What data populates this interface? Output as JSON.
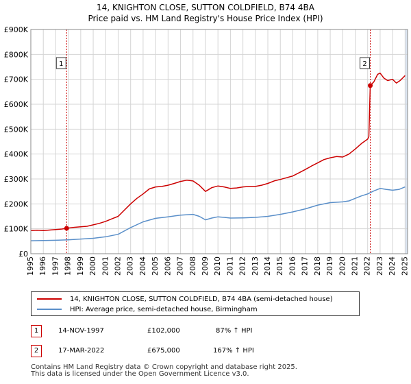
{
  "header": {
    "title": "14, KNIGHTON CLOSE, SUTTON COLDFIELD, B74 4BA",
    "subtitle": "Price paid vs. HM Land Registry's House Price Index (HPI)"
  },
  "colors": {
    "red": "#cc0000",
    "blue": "#5a8fc9",
    "shade": "#dce6f2",
    "grid": "#d4d4d4"
  },
  "chart_data": {
    "type": "line",
    "title": "14, KNIGHTON CLOSE, SUTTON COLDFIELD, B74 4BA",
    "subtitle": "Price paid vs. HM Land Registry's House Price Index (HPI)",
    "x_range": [
      1995,
      2025.2
    ],
    "ylim": [
      0,
      900000
    ],
    "yticks": [
      0,
      100000,
      200000,
      300000,
      400000,
      500000,
      600000,
      700000,
      800000,
      900000
    ],
    "ytick_labels": [
      "£0",
      "£100K",
      "£200K",
      "£300K",
      "£400K",
      "£500K",
      "£600K",
      "£700K",
      "£800K",
      "£900K"
    ],
    "xticks": [
      1995,
      1996,
      1997,
      1998,
      1999,
      2000,
      2001,
      2002,
      2003,
      2004,
      2005,
      2006,
      2007,
      2008,
      2009,
      2010,
      2011,
      2012,
      2013,
      2014,
      2015,
      2016,
      2017,
      2018,
      2019,
      2020,
      2021,
      2022,
      2023,
      2024,
      2025
    ],
    "xtick_labels": [
      "1995",
      "1996",
      "1997",
      "1998",
      "1999",
      "2000",
      "2001",
      "2002",
      "2003",
      "2004",
      "2005",
      "2006",
      "2007",
      "2008",
      "2009",
      "2010",
      "2011",
      "2012",
      "2013",
      "2014",
      "2015",
      "2016",
      "2017",
      "2018",
      "2019",
      "2020",
      "2021",
      "2022",
      "2023",
      "2024",
      "2025"
    ],
    "shaded_region": [
      2025.0,
      2025.2
    ],
    "legend_position": "below",
    "series": [
      {
        "name": "14, KNIGHTON CLOSE, SUTTON COLDFIELD, B74 4BA (semi-detached house)",
        "color": "#cc0000",
        "points": [
          [
            1995.0,
            93000
          ],
          [
            1995.5,
            94000
          ],
          [
            1996.0,
            93000
          ],
          [
            1996.5,
            95000
          ],
          [
            1997.0,
            97000
          ],
          [
            1997.5,
            99000
          ],
          [
            1997.87,
            102000
          ],
          [
            1998.5,
            106000
          ],
          [
            1999.0,
            108000
          ],
          [
            1999.5,
            110000
          ],
          [
            2000.0,
            116000
          ],
          [
            2000.5,
            122000
          ],
          [
            2001.0,
            130000
          ],
          [
            2001.5,
            140000
          ],
          [
            2002.0,
            150000
          ],
          [
            2002.5,
            175000
          ],
          [
            2003.0,
            200000
          ],
          [
            2003.5,
            222000
          ],
          [
            2004.0,
            240000
          ],
          [
            2004.5,
            260000
          ],
          [
            2005.0,
            268000
          ],
          [
            2005.5,
            270000
          ],
          [
            2006.0,
            275000
          ],
          [
            2006.5,
            282000
          ],
          [
            2007.0,
            290000
          ],
          [
            2007.5,
            295000
          ],
          [
            2008.0,
            292000
          ],
          [
            2008.5,
            275000
          ],
          [
            2009.0,
            250000
          ],
          [
            2009.5,
            265000
          ],
          [
            2010.0,
            272000
          ],
          [
            2010.5,
            268000
          ],
          [
            2011.0,
            262000
          ],
          [
            2011.5,
            264000
          ],
          [
            2012.0,
            268000
          ],
          [
            2012.5,
            270000
          ],
          [
            2013.0,
            270000
          ],
          [
            2013.5,
            275000
          ],
          [
            2014.0,
            282000
          ],
          [
            2014.5,
            292000
          ],
          [
            2015.0,
            298000
          ],
          [
            2015.5,
            305000
          ],
          [
            2016.0,
            312000
          ],
          [
            2016.5,
            325000
          ],
          [
            2017.0,
            338000
          ],
          [
            2017.5,
            352000
          ],
          [
            2018.0,
            365000
          ],
          [
            2018.5,
            378000
          ],
          [
            2019.0,
            385000
          ],
          [
            2019.5,
            390000
          ],
          [
            2020.0,
            388000
          ],
          [
            2020.5,
            400000
          ],
          [
            2021.0,
            420000
          ],
          [
            2021.5,
            442000
          ],
          [
            2022.0,
            460000
          ],
          [
            2022.1,
            470000
          ],
          [
            2022.21,
            675000
          ],
          [
            2022.5,
            690000
          ],
          [
            2022.8,
            720000
          ],
          [
            2023.0,
            725000
          ],
          [
            2023.3,
            705000
          ],
          [
            2023.6,
            695000
          ],
          [
            2024.0,
            700000
          ],
          [
            2024.3,
            685000
          ],
          [
            2024.6,
            695000
          ],
          [
            2025.0,
            715000
          ]
        ]
      },
      {
        "name": "HPI: Average price, semi-detached house, Birmingham",
        "color": "#5a8fc9",
        "points": [
          [
            1995.0,
            52000
          ],
          [
            1996.0,
            53000
          ],
          [
            1997.0,
            54000
          ],
          [
            1998.0,
            56000
          ],
          [
            1999.0,
            59000
          ],
          [
            2000.0,
            62000
          ],
          [
            2001.0,
            68000
          ],
          [
            2002.0,
            78000
          ],
          [
            2003.0,
            105000
          ],
          [
            2004.0,
            128000
          ],
          [
            2005.0,
            142000
          ],
          [
            2006.0,
            148000
          ],
          [
            2007.0,
            155000
          ],
          [
            2008.0,
            158000
          ],
          [
            2008.5,
            150000
          ],
          [
            2009.0,
            136000
          ],
          [
            2009.5,
            143000
          ],
          [
            2010.0,
            148000
          ],
          [
            2010.5,
            146000
          ],
          [
            2011.0,
            143000
          ],
          [
            2012.0,
            144000
          ],
          [
            2013.0,
            146000
          ],
          [
            2014.0,
            150000
          ],
          [
            2015.0,
            158000
          ],
          [
            2016.0,
            168000
          ],
          [
            2017.0,
            180000
          ],
          [
            2018.0,
            195000
          ],
          [
            2019.0,
            205000
          ],
          [
            2020.0,
            208000
          ],
          [
            2020.5,
            212000
          ],
          [
            2021.0,
            222000
          ],
          [
            2021.5,
            232000
          ],
          [
            2022.0,
            240000
          ],
          [
            2022.5,
            252000
          ],
          [
            2023.0,
            262000
          ],
          [
            2023.5,
            258000
          ],
          [
            2024.0,
            255000
          ],
          [
            2024.5,
            258000
          ],
          [
            2025.0,
            268000
          ]
        ]
      }
    ],
    "markers": [
      {
        "label": "1",
        "x": 1997.87,
        "y": 102000
      },
      {
        "label": "2",
        "x": 2022.21,
        "y": 675000
      }
    ]
  },
  "legend": {
    "items": [
      {
        "label": "14, KNIGHTON CLOSE, SUTTON COLDFIELD, B74 4BA (semi-detached house)",
        "color": "#cc0000"
      },
      {
        "label": "HPI: Average price, semi-detached house, Birmingham",
        "color": "#5a8fc9"
      }
    ]
  },
  "transactions": [
    {
      "num": "1",
      "date": "14-NOV-1997",
      "price": "£102,000",
      "hpi": "87% ↑ HPI"
    },
    {
      "num": "2",
      "date": "17-MAR-2022",
      "price": "£675,000",
      "hpi": "167% ↑ HPI"
    }
  ],
  "footer": {
    "line1": "Contains HM Land Registry data © Crown copyright and database right 2025.",
    "line2": "This data is licensed under the Open Government Licence v3.0."
  }
}
